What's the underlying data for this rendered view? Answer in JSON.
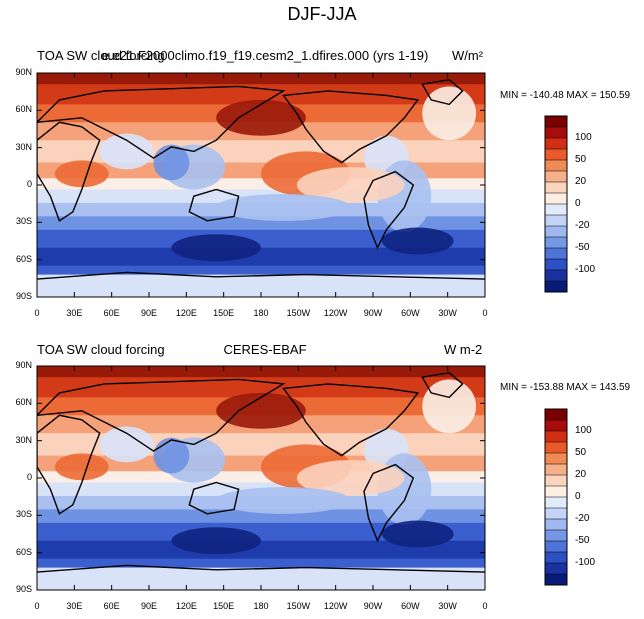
{
  "title": "DJF-JJA",
  "panels": [
    {
      "left_title": "TOA SW cloud forcing",
      "center_title": "e.e21.F2000climo.f19_f19.cesm2_1.dfires.000 (yrs 1-19)",
      "units": "W/m²",
      "minmax": "MIN = -140.48  MAX = 150.59",
      "lat_labels": [
        "90N",
        "60N",
        "30N",
        "0",
        "30S",
        "60S",
        "90S"
      ],
      "lon_labels": [
        "0",
        "30E",
        "60E",
        "90E",
        "120E",
        "150E",
        "180",
        "150W",
        "120W",
        "90W",
        "60W",
        "30W",
        "0"
      ],
      "colorbar_labels": [
        "100",
        "50",
        "20",
        "0",
        "-20",
        "-50",
        "-100"
      ]
    },
    {
      "left_title": "TOA SW cloud forcing",
      "center_title": "CERES-EBAF",
      "units": "W m-2",
      "minmax": "MIN = -153.88  MAX = 143.59",
      "lat_labels": [
        "90N",
        "60N",
        "30N",
        "0",
        "30S",
        "60S",
        "90S"
      ],
      "lon_labels": [
        "0",
        "30E",
        "60E",
        "90E",
        "120E",
        "150E",
        "180",
        "150W",
        "120W",
        "90W",
        "60W",
        "30W",
        "0"
      ],
      "colorbar_labels": [
        "100",
        "50",
        "20",
        "0",
        "-20",
        "-50",
        "-100"
      ]
    }
  ],
  "colorbar_colors": [
    "#7a0000",
    "#a80c0c",
    "#d22e14",
    "#e85a2a",
    "#f08a55",
    "#f6b08a",
    "#fad4bc",
    "#fdeee4",
    "#e2eafb",
    "#c4d4f6",
    "#9fb8f0",
    "#7498e6",
    "#4f74d8",
    "#2e4fc2",
    "#1a32a0",
    "#0a1a78"
  ]
}
